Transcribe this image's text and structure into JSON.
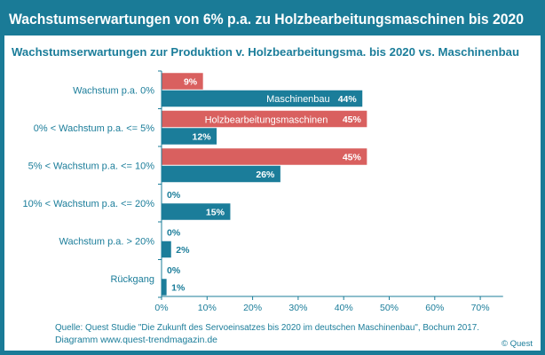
{
  "header": {
    "title": "Wachstumserwartungen von 6% p.a. zu Holzbearbeitungsmaschinen bis 2020"
  },
  "chart_data": {
    "type": "bar",
    "orientation": "horizontal",
    "title": "Wachstumserwartungen zur Produktion v. Holzbearbeitungsma. bis 2020 vs. Maschinenbau",
    "categories": [
      "Wachstum p.a. 0%",
      "0% < Wachstum p.a. <= 5%",
      "5% < Wachstum p.a. <= 10%",
      "10% < Wachstum p.a. <= 20%",
      "Wachstum p.a. > 20%",
      "Rückgang"
    ],
    "series": [
      {
        "name": "Holzbearbeitungsmaschinen",
        "color": "#d9605f",
        "values": [
          9,
          45,
          45,
          0,
          0,
          0
        ],
        "labels": [
          "9%",
          "45%",
          "45%",
          "0%",
          "0%",
          "0%"
        ]
      },
      {
        "name": "Maschinenbau",
        "color": "#1b7d9a",
        "values": [
          44,
          12,
          26,
          15,
          2,
          1
        ],
        "labels": [
          "44%",
          "12%",
          "26%",
          "15%",
          "2%",
          "1%"
        ]
      }
    ],
    "xlim": [
      0,
      75
    ],
    "xticks": [
      "0%",
      "10%",
      "20%",
      "30%",
      "40%",
      "50%",
      "60%",
      "70%"
    ],
    "grid": false,
    "legend": "inline in bars"
  },
  "footer": {
    "source": "Quelle: Quest Studie \"Die Zukunft des Servoeinsatzes bis 2020 im  deutschen Maschinenbau\", Bochum 2017.",
    "diagram": "Diagramm  www.quest-trendmagazin.de",
    "copyright": "© Quest"
  }
}
